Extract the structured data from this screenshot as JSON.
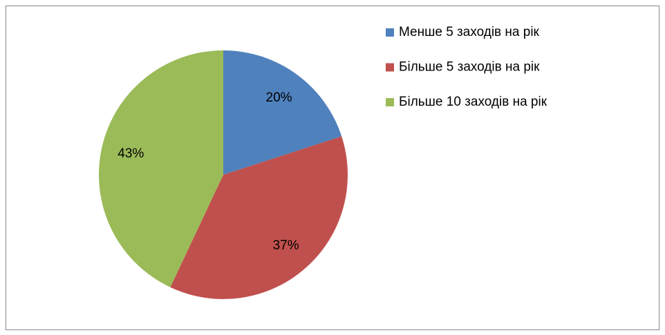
{
  "chart_data": {
    "type": "pie",
    "categories": [
      "Менше 5 заходів на рік",
      "Більше 5 заходів на рік",
      "Більше 10 заходів на рік"
    ],
    "values": [
      20,
      37,
      43
    ],
    "value_labels": [
      "20%",
      "37%",
      "43%"
    ],
    "colors": [
      "#4f81bd",
      "#c0504d",
      "#9bbb59"
    ],
    "legend": "right"
  }
}
